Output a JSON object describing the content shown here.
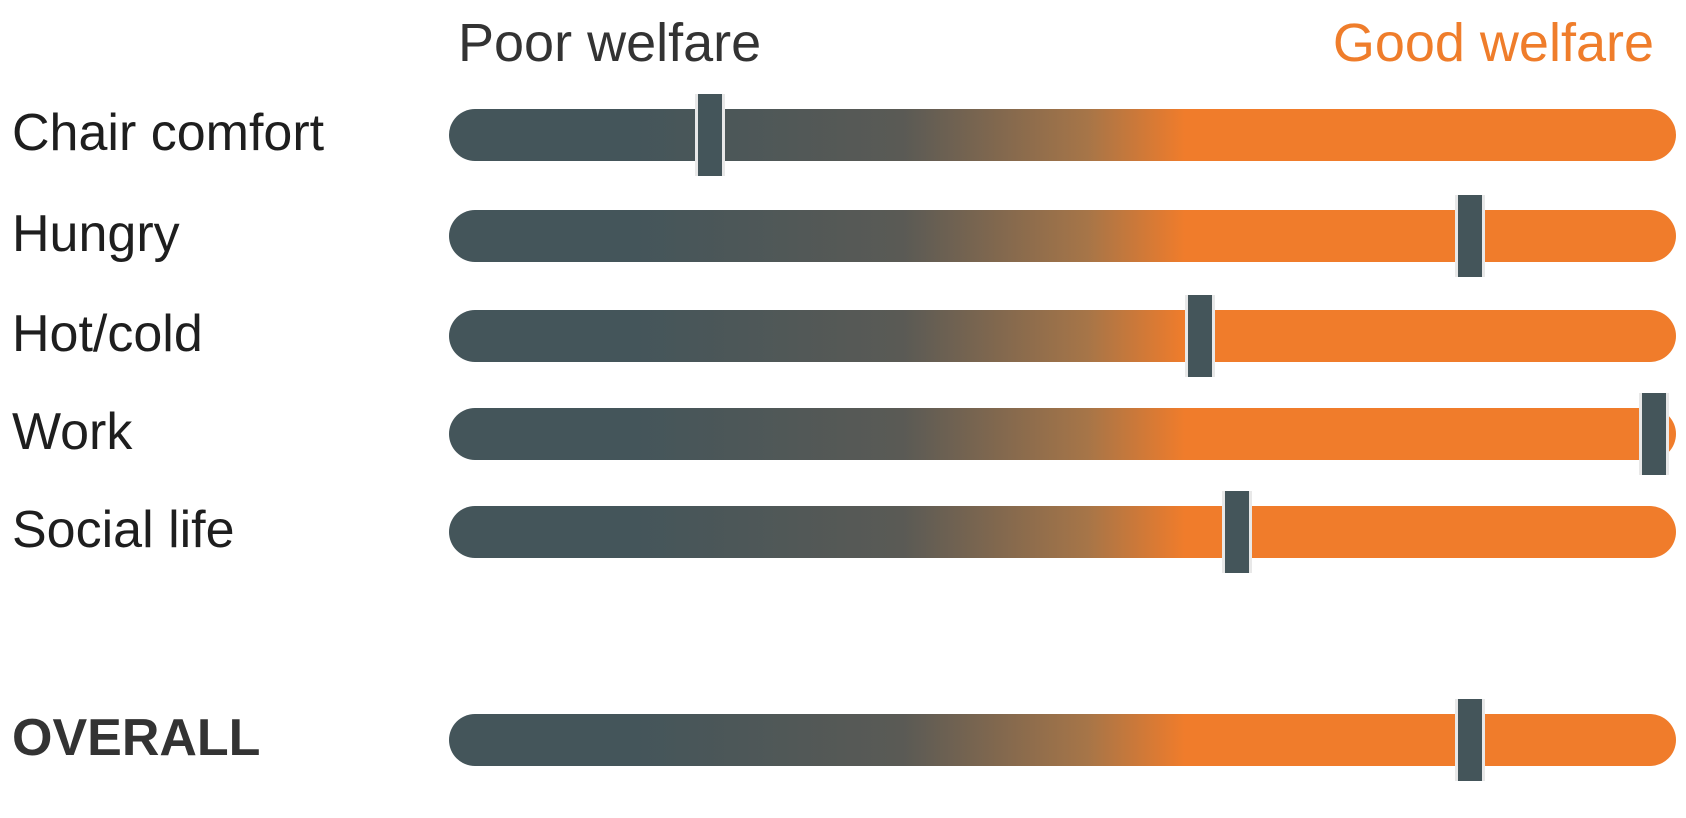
{
  "header": {
    "poor_label": "Poor welfare",
    "good_label": "Good welfare"
  },
  "colors": {
    "poor": "#44555a",
    "good": "#f07c2b",
    "marker": "#44555a",
    "marker_outline": "#e8e8e8"
  },
  "rows": [
    {
      "label": "Chair comfort",
      "value": 0.21,
      "bold": false
    },
    {
      "label": "Hungry",
      "value": 0.83,
      "bold": false
    },
    {
      "label": "Hot/cold",
      "value": 0.61,
      "bold": false
    },
    {
      "label": "Work",
      "value": 0.98,
      "bold": false
    },
    {
      "label": "Social life",
      "value": 0.64,
      "bold": false
    }
  ],
  "overall": {
    "label": "OVERALL",
    "value": 0.83,
    "bold": true
  }
}
